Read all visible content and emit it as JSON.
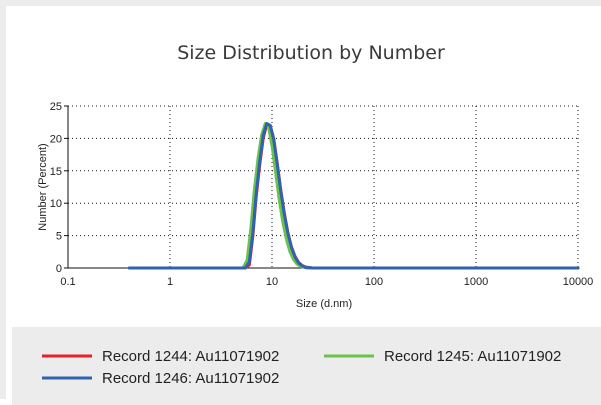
{
  "chart_data": {
    "type": "line",
    "title": "Size Distribution by Number",
    "xlabel": "Size (d.nm)",
    "ylabel": "Number (Percent)",
    "x_scale": "log",
    "xlim": [
      0.1,
      10000
    ],
    "ylim": [
      0,
      25
    ],
    "x_ticks": [
      "0.1",
      "1",
      "10",
      "100",
      "1000",
      "10000"
    ],
    "y_ticks": [
      "0",
      "5",
      "10",
      "15",
      "20",
      "25"
    ],
    "grid": true,
    "legend_position": "bottom",
    "series": [
      {
        "name": "Record 1244: Au11071902",
        "color": "#e8202a",
        "points": [
          [
            0.4,
            0
          ],
          [
            5.5,
            0
          ],
          [
            6.0,
            0.5
          ],
          [
            6.5,
            5
          ],
          [
            7.0,
            11
          ],
          [
            7.6,
            16
          ],
          [
            8.2,
            20
          ],
          [
            8.9,
            22.2
          ],
          [
            9.6,
            22.0
          ],
          [
            10.4,
            20
          ],
          [
            11.3,
            16
          ],
          [
            12.2,
            12
          ],
          [
            13.2,
            8.5
          ],
          [
            14.3,
            5.5
          ],
          [
            15.5,
            3.3
          ],
          [
            16.8,
            1.8
          ],
          [
            18.2,
            0.9
          ],
          [
            19.7,
            0.4
          ],
          [
            21.3,
            0.15
          ],
          [
            25,
            0
          ],
          [
            10000,
            0
          ]
        ]
      },
      {
        "name": "Record 1245: Au11071902",
        "color": "#6cc24a",
        "points": [
          [
            0.4,
            0
          ],
          [
            5.2,
            0
          ],
          [
            5.7,
            1.2
          ],
          [
            6.2,
            6
          ],
          [
            6.7,
            12
          ],
          [
            7.3,
            17
          ],
          [
            7.9,
            20.5
          ],
          [
            8.6,
            22.3
          ],
          [
            9.3,
            21.5
          ],
          [
            10.1,
            18.5
          ],
          [
            10.9,
            14.5
          ],
          [
            11.8,
            10.5
          ],
          [
            12.8,
            7.0
          ],
          [
            13.9,
            4.3
          ],
          [
            15.0,
            2.5
          ],
          [
            16.3,
            1.3
          ],
          [
            17.6,
            0.6
          ],
          [
            19.1,
            0.25
          ],
          [
            22,
            0
          ],
          [
            10000,
            0
          ]
        ]
      },
      {
        "name": "Record 1246: Au11071902",
        "color": "#2f63b0",
        "points": [
          [
            0.4,
            0
          ],
          [
            5.5,
            0
          ],
          [
            6.0,
            1.0
          ],
          [
            6.5,
            5.5
          ],
          [
            7.0,
            11.5
          ],
          [
            7.6,
            16.5
          ],
          [
            8.2,
            20.5
          ],
          [
            8.9,
            22.3
          ],
          [
            9.6,
            22.0
          ],
          [
            10.4,
            19.8
          ],
          [
            11.3,
            15.8
          ],
          [
            12.2,
            11.8
          ],
          [
            13.2,
            8.3
          ],
          [
            14.3,
            5.4
          ],
          [
            15.5,
            3.2
          ],
          [
            16.8,
            1.7
          ],
          [
            18.2,
            0.8
          ],
          [
            19.7,
            0.35
          ],
          [
            21.3,
            0.1
          ],
          [
            25,
            0
          ],
          [
            10000,
            0
          ]
        ]
      }
    ]
  }
}
